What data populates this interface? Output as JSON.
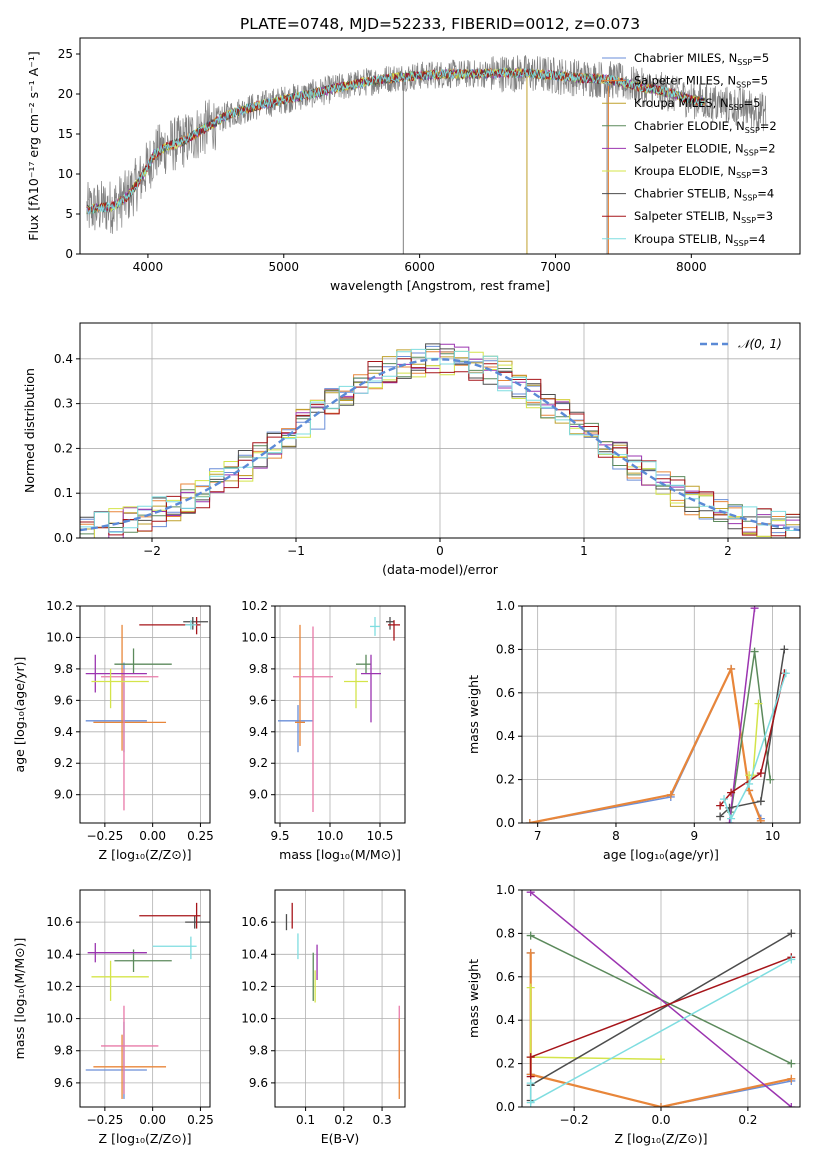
{
  "figure_title": "PLATE=0748, MJD=52233, FIBERID=0012, z=0.073",
  "colors": {
    "chabrier_miles": "#6a8ed8",
    "salpeter_miles": "#e8863a",
    "kroupa_miles": "#bfa12d",
    "chabrier_elodie": "#5c8a5c",
    "salpeter_elodie": "#9b34b0",
    "kroupa_elodie": "#d4e44a",
    "chabrier_stelib": "#4d4d4d",
    "salpeter_stelib": "#a6151a",
    "kroupa_stelib": "#7fdde0",
    "pink": "#e87aa8",
    "data": "#808080",
    "normal": "#5b8ad6"
  },
  "chart_data": [
    {
      "id": "spectrum",
      "type": "line",
      "title": "",
      "xlabel": "wavelength [Angstrom, rest frame]",
      "ylabel": "Flux [fλ10⁻¹⁷ erg cm⁻² s⁻¹ A⁻¹]",
      "xlim": [
        3500,
        8800
      ],
      "ylim": [
        0,
        27
      ],
      "xticks": [
        4000,
        5000,
        6000,
        7000,
        8000
      ],
      "yticks": [
        0,
        5,
        10,
        15,
        20,
        25
      ],
      "legend_position": "right",
      "legend": [
        "Chabrier MILES, NSSP=5",
        "Salpeter MILES, NSSP=5",
        "Kroupa MILES, NSSP=5",
        "Chabrier ELODIE, NSSP=2",
        "Salpeter ELODIE, NSSP=2",
        "Kroupa ELODIE, NSSP=3",
        "Chabrier STELIB, NSSP=4",
        "Salpeter STELIB, NSSP=3",
        "Kroupa STELIB, NSSP=4"
      ],
      "continuum": {
        "x": [
          3550,
          3650,
          3750,
          3850,
          3950,
          4050,
          4150,
          4250,
          4350,
          4450,
          4600,
          4800,
          5000,
          5200,
          5400,
          5600,
          5800,
          6000,
          6200,
          6400,
          6600,
          6800,
          7000,
          7200,
          7400,
          7600,
          7800,
          8000,
          8200,
          8400,
          8600
        ],
        "y": [
          5.5,
          5.8,
          6.0,
          7.2,
          9.5,
          12.5,
          13.5,
          14.0,
          15.0,
          16.0,
          17.5,
          18.5,
          19.3,
          20.0,
          20.8,
          21.5,
          22.0,
          22.3,
          22.5,
          22.5,
          22.6,
          22.6,
          22.3,
          22.0,
          21.8,
          21.0,
          20.3,
          19.3,
          18.7,
          18.3,
          17.5
        ]
      },
      "model_x_range": [
        3550,
        8100
      ],
      "data_x_range": [
        3550,
        8550
      ]
    },
    {
      "id": "residuals",
      "type": "histogram",
      "xlabel": "(data-model)/error",
      "ylabel": "Normed distribution",
      "xlim": [
        -2.5,
        2.5
      ],
      "ylim": [
        0,
        0.48
      ],
      "xticks": [
        -2,
        -1,
        0,
        1,
        2
      ],
      "yticks": [
        0.0,
        0.1,
        0.2,
        0.3,
        0.4
      ],
      "legend_position": "top-right",
      "legend": [
        "𝒩(0, 1)"
      ],
      "bin_width": 0.1
    },
    {
      "id": "age_vs_Z",
      "type": "errorbar",
      "xlabel": "Z [log₁₀(Z/Z⊙)]",
      "ylabel": "age  [log₁₀(age/yr)]",
      "xlim": [
        -0.38,
        0.3
      ],
      "ylim": [
        8.82,
        10.2
      ],
      "xticks": [
        -0.25,
        0.0,
        0.25
      ],
      "yticks": [
        9.0,
        9.2,
        9.4,
        9.6,
        9.8,
        10.0,
        10.2
      ],
      "points": [
        {
          "c": "chabrier_miles",
          "x": -0.15,
          "xe": [
            0.2,
            0.12
          ],
          "y": 9.47,
          "ye": [
            0.2,
            0.37
          ]
        },
        {
          "c": "salpeter_miles",
          "x": -0.16,
          "xe": [
            0.15,
            0.23
          ],
          "y": 9.46,
          "ye": [
            0.18,
            0.62
          ]
        },
        {
          "c": "pink",
          "x": -0.15,
          "xe": [
            0.12,
            0.18
          ],
          "y": 9.75,
          "ye": [
            0.85,
            0.05
          ]
        },
        {
          "c": "chabrier_elodie",
          "x": -0.1,
          "xe": [
            0.1,
            0.2
          ],
          "y": 9.83,
          "ye": [
            0.06,
            0.1
          ]
        },
        {
          "c": "salpeter_elodie",
          "x": -0.3,
          "xe": [
            0.05,
            0.27
          ],
          "y": 9.77,
          "ye": [
            0.12,
            0.12
          ]
        },
        {
          "c": "kroupa_elodie",
          "x": -0.22,
          "xe": [
            0.1,
            0.2
          ],
          "y": 9.72,
          "ye": [
            0.17,
            0.08
          ]
        },
        {
          "c": "chabrier_stelib",
          "x": 0.21,
          "xe": [
            0.05,
            0.08
          ],
          "y": 10.1,
          "ye": [
            0.05,
            0.03
          ]
        },
        {
          "c": "salpeter_stelib",
          "x": 0.23,
          "xe": [
            0.3,
            0.02
          ],
          "y": 10.08,
          "ye": [
            0.06,
            0.05
          ]
        },
        {
          "c": "kroupa_stelib",
          "x": 0.2,
          "xe": [
            0.03,
            0.03
          ],
          "y": 10.08,
          "ye": [
            0.03,
            0.03
          ]
        }
      ]
    },
    {
      "id": "age_vs_mass",
      "type": "errorbar",
      "xlabel": "mass [log₁₀(M/M⊙)]",
      "ylabel": "",
      "xlim": [
        9.45,
        10.75
      ],
      "ylim": [
        8.82,
        10.2
      ],
      "xticks": [
        9.5,
        10.0,
        10.5
      ],
      "yticks": [
        9.0,
        9.2,
        9.4,
        9.6,
        9.8,
        10.0,
        10.2
      ],
      "points": [
        {
          "c": "chabrier_miles",
          "x": 9.68,
          "xe": [
            0.2,
            0.15
          ],
          "y": 9.47,
          "ye": [
            0.2,
            0.1
          ]
        },
        {
          "c": "salpeter_miles",
          "x": 9.7,
          "xe": [
            0.05,
            0.05
          ],
          "y": 9.46,
          "ye": [
            0.15,
            0.62
          ]
        },
        {
          "c": "pink",
          "x": 9.83,
          "xe": [
            0.2,
            0.2
          ],
          "y": 9.75,
          "ye": [
            0.86,
            0.32
          ]
        },
        {
          "c": "chabrier_elodie",
          "x": 10.36,
          "xe": [
            0.1,
            0.05
          ],
          "y": 9.83,
          "ye": [
            0.06,
            0.06
          ]
        },
        {
          "c": "salpeter_elodie",
          "x": 10.41,
          "xe": [
            0.1,
            0.1
          ],
          "y": 9.77,
          "ye": [
            0.31,
            0.12
          ]
        },
        {
          "c": "kroupa_elodie",
          "x": 10.26,
          "xe": [
            0.12,
            0.12
          ],
          "y": 9.72,
          "ye": [
            0.17,
            0.08
          ]
        },
        {
          "c": "chabrier_stelib",
          "x": 10.6,
          "xe": [
            0.04,
            0.04
          ],
          "y": 10.1,
          "ye": [
            0.05,
            0.03
          ]
        },
        {
          "c": "salpeter_stelib",
          "x": 10.64,
          "xe": [
            0.06,
            0.06
          ],
          "y": 10.08,
          "ye": [
            0.1,
            0.03
          ]
        },
        {
          "c": "kroupa_stelib",
          "x": 10.45,
          "xe": [
            0.05,
            0.05
          ],
          "y": 10.07,
          "ye": [
            0.06,
            0.06
          ]
        }
      ]
    },
    {
      "id": "mass_weight_vs_age",
      "type": "line",
      "xlabel": "age  [log₁₀(age/yr)]",
      "ylabel": "mass weight",
      "xlim": [
        6.8,
        10.35
      ],
      "ylim": [
        0,
        1.0
      ],
      "xticks": [
        7,
        8,
        9,
        10
      ],
      "yticks": [
        0.0,
        0.2,
        0.4,
        0.6,
        0.8,
        1.0
      ],
      "series": [
        {
          "c": "chabrier_miles",
          "x": [
            6.9,
            8.7,
            9.47,
            9.7,
            9.85
          ],
          "y": [
            0.0,
            0.12,
            0.71,
            0.15,
            0.02
          ],
          "w": 1.5
        },
        {
          "c": "salpeter_miles",
          "x": [
            6.9,
            8.7,
            9.47,
            9.7,
            9.85
          ],
          "y": [
            0.0,
            0.13,
            0.71,
            0.15,
            0.01
          ],
          "w": 2.2
        },
        {
          "c": "chabrier_elodie",
          "x": [
            9.47,
            9.77,
            9.97
          ],
          "y": [
            0.05,
            0.79,
            0.2
          ],
          "w": 1.5
        },
        {
          "c": "salpeter_elodie",
          "x": [
            9.45,
            9.77
          ],
          "y": [
            0.0,
            0.99
          ],
          "w": 1.5
        },
        {
          "c": "kroupa_elodie",
          "x": [
            9.7,
            9.75,
            9.82
          ],
          "y": [
            0.22,
            0.22,
            0.55
          ],
          "w": 1.5
        },
        {
          "c": "chabrier_stelib",
          "x": [
            9.33,
            9.45,
            9.85,
            10.15
          ],
          "y": [
            0.03,
            0.07,
            0.1,
            0.8
          ],
          "w": 1.5
        },
        {
          "c": "salpeter_stelib",
          "x": [
            9.33,
            9.47,
            9.85,
            10.15
          ],
          "y": [
            0.08,
            0.14,
            0.23,
            0.69
          ],
          "w": 1.5
        },
        {
          "c": "kroupa_stelib",
          "x": [
            9.38,
            9.47,
            9.7,
            10.17
          ],
          "y": [
            0.11,
            0.02,
            0.18,
            0.69
          ],
          "w": 1.5
        }
      ]
    },
    {
      "id": "mass_vs_Z",
      "type": "errorbar",
      "xlabel": "Z [log₁₀(Z/Z⊙)]",
      "ylabel": "mass [log₁₀(M/M⊙)]",
      "xlim": [
        -0.38,
        0.3
      ],
      "ylim": [
        9.45,
        10.8
      ],
      "xticks": [
        -0.25,
        0.0,
        0.25
      ],
      "yticks": [
        9.6,
        9.8,
        10.0,
        10.2,
        10.4,
        10.6
      ],
      "points": [
        {
          "c": "chabrier_miles",
          "x": -0.15,
          "xe": [
            0.2,
            0.12
          ],
          "y": 9.68,
          "ye": [
            0.18,
            0.3
          ]
        },
        {
          "c": "salpeter_miles",
          "x": -0.16,
          "xe": [
            0.15,
            0.23
          ],
          "y": 9.7,
          "ye": [
            0.2,
            0.2
          ]
        },
        {
          "c": "pink",
          "x": -0.15,
          "xe": [
            0.12,
            0.18
          ],
          "y": 9.83,
          "ye": [
            0.3,
            0.25
          ]
        },
        {
          "c": "chabrier_elodie",
          "x": -0.1,
          "xe": [
            0.1,
            0.2
          ],
          "y": 10.36,
          "ye": [
            0.07,
            0.07
          ]
        },
        {
          "c": "salpeter_elodie",
          "x": -0.3,
          "xe": [
            0.04,
            0.27
          ],
          "y": 10.41,
          "ye": [
            0.06,
            0.06
          ]
        },
        {
          "c": "kroupa_elodie",
          "x": -0.22,
          "xe": [
            0.1,
            0.2
          ],
          "y": 10.26,
          "ye": [
            0.15,
            0.1
          ]
        },
        {
          "c": "chabrier_stelib",
          "x": 0.22,
          "xe": [
            0.05,
            0.08
          ],
          "y": 10.6,
          "ye": [
            0.04,
            0.04
          ]
        },
        {
          "c": "salpeter_stelib",
          "x": 0.23,
          "xe": [
            0.3,
            0.02
          ],
          "y": 10.64,
          "ye": [
            0.08,
            0.08
          ]
        },
        {
          "c": "kroupa_stelib",
          "x": 0.2,
          "xe": [
            0.2,
            0.03
          ],
          "y": 10.45,
          "ye": [
            0.08,
            0.06
          ]
        }
      ]
    },
    {
      "id": "mass_vs_ebv",
      "type": "errorbar",
      "xlabel": "E(B-V)",
      "ylabel": "",
      "xlim": [
        0.02,
        0.36
      ],
      "ylim": [
        9.45,
        10.8
      ],
      "xticks": [
        0.1,
        0.2,
        0.3
      ],
      "yticks": [
        9.6,
        9.8,
        10.0,
        10.2,
        10.4,
        10.6
      ],
      "points": [
        {
          "c": "chabrier_stelib",
          "x": 0.05,
          "xe": [
            0,
            0
          ],
          "y": 10.6,
          "ye": [
            0.05,
            0.05
          ]
        },
        {
          "c": "salpeter_stelib",
          "x": 0.065,
          "xe": [
            0,
            0
          ],
          "y": 10.64,
          "ye": [
            0.08,
            0.08
          ]
        },
        {
          "c": "kroupa_stelib",
          "x": 0.08,
          "xe": [
            0,
            0
          ],
          "y": 10.45,
          "ye": [
            0.08,
            0.08
          ]
        },
        {
          "c": "chabrier_elodie",
          "x": 0.12,
          "xe": [
            0,
            0
          ],
          "y": 10.26,
          "ye": [
            0.15,
            0.15
          ]
        },
        {
          "c": "kroupa_elodie",
          "x": 0.125,
          "xe": [
            0,
            0
          ],
          "y": 10.2,
          "ye": [
            0.1,
            0.1
          ]
        },
        {
          "c": "salpeter_elodie",
          "x": 0.13,
          "xe": [
            0,
            0
          ],
          "y": 10.35,
          "ye": [
            0.11,
            0.11
          ]
        },
        {
          "c": "pink",
          "x": 0.345,
          "xe": [
            0,
            0
          ],
          "y": 9.83,
          "ye": [
            0.2,
            0.25
          ]
        },
        {
          "c": "salpeter_miles",
          "x": 0.345,
          "xe": [
            0,
            0
          ],
          "y": 9.7,
          "ye": [
            0.2,
            0.3
          ]
        }
      ]
    },
    {
      "id": "mass_weight_vs_Z",
      "type": "line",
      "xlabel": "Z [log₁₀(Z/Z⊙)]",
      "ylabel": "mass weight",
      "xlim": [
        -0.32,
        0.32
      ],
      "ylim": [
        0,
        1.0
      ],
      "xticks": [
        -0.2,
        0.0,
        0.2
      ],
      "yticks": [
        0.0,
        0.2,
        0.4,
        0.6,
        0.8,
        1.0
      ],
      "series": [
        {
          "c": "chabrier_miles",
          "x": [
            -0.3,
            -0.3,
            0.0,
            0.3
          ],
          "y": [
            0.71,
            0.15,
            0.0,
            0.12
          ],
          "w": 1.5
        },
        {
          "c": "salpeter_miles",
          "x": [
            -0.3,
            -0.3,
            0.0,
            0.3
          ],
          "y": [
            0.71,
            0.15,
            0.0,
            0.13
          ],
          "w": 2.2
        },
        {
          "c": "chabrier_elodie",
          "x": [
            -0.3,
            0.3
          ],
          "y": [
            0.79,
            0.2
          ],
          "w": 1.5
        },
        {
          "c": "salpeter_elodie",
          "x": [
            -0.3,
            0.3
          ],
          "y": [
            0.99,
            0.0
          ],
          "w": 1.5
        },
        {
          "c": "kroupa_elodie",
          "x": [
            -0.3,
            -0.3,
            0.0
          ],
          "y": [
            0.55,
            0.23,
            0.22
          ],
          "w": 1.5
        },
        {
          "c": "chabrier_stelib",
          "x": [
            -0.3,
            -0.3,
            0.3
          ],
          "y": [
            0.03,
            0.1,
            0.8
          ],
          "w": 1.5
        },
        {
          "c": "salpeter_stelib",
          "x": [
            -0.3,
            -0.3,
            0.3
          ],
          "y": [
            0.14,
            0.23,
            0.69
          ],
          "w": 1.5
        },
        {
          "c": "kroupa_stelib",
          "x": [
            -0.3,
            -0.3,
            0.3
          ],
          "y": [
            0.11,
            0.02,
            0.68
          ],
          "w": 1.5
        }
      ]
    }
  ]
}
